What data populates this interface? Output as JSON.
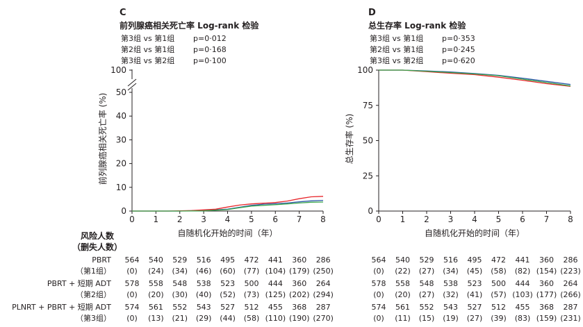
{
  "panels": [
    {
      "letter": "C",
      "title": "前列腺癌相关死亡率 Log-rank 检验",
      "pvalues": [
        {
          "label": "第3组 vs 第1组",
          "p": "p=0·012"
        },
        {
          "label": "第2组 vs 第1组",
          "p": "p=0·168"
        },
        {
          "label": "第3组 vs 第2组",
          "p": "p=0·100"
        }
      ]
    },
    {
      "letter": "D",
      "title": "总生存率 Log-rank 检验",
      "pvalues": [
        {
          "label": "第3组 vs 第1组",
          "p": "p=0·353"
        },
        {
          "label": "第2组 vs 第1组",
          "p": "p=0·245"
        },
        {
          "label": "第3组 vs 第2组",
          "p": "p=0·620"
        }
      ]
    }
  ],
  "colors": {
    "group1": "#2e5aa8",
    "group2": "#e8262b",
    "group3": "#3aa64c",
    "axis": "#231f20"
  },
  "risk_table": {
    "header": [
      "风险人数",
      "（删失人数）"
    ],
    "rows": [
      {
        "label": "PBRT",
        "sublabel": "（第1组）",
        "C": {
          "at_risk": [
            "564",
            "540",
            "529",
            "516",
            "495",
            "472",
            "441",
            "360",
            "286"
          ],
          "censored": [
            "(0)",
            "(24)",
            "(34)",
            "(46)",
            "(60)",
            "(77)",
            "(104)",
            "(179)",
            "(250)"
          ]
        },
        "D": {
          "at_risk": [
            "564",
            "540",
            "529",
            "516",
            "495",
            "472",
            "441",
            "360",
            "286"
          ],
          "censored": [
            "(0)",
            "(22)",
            "(27)",
            "(34)",
            "(45)",
            "(58)",
            "(82)",
            "(154)",
            "(223)"
          ]
        }
      },
      {
        "label": "PBRT + 短期 ADT",
        "sublabel": "（第2组）",
        "C": {
          "at_risk": [
            "578",
            "558",
            "548",
            "538",
            "523",
            "500",
            "444",
            "360",
            "264"
          ],
          "censored": [
            "(0)",
            "(20)",
            "(30)",
            "(40)",
            "(52)",
            "(73)",
            "(125)",
            "(202)",
            "(294)"
          ]
        },
        "D": {
          "at_risk": [
            "578",
            "558",
            "548",
            "538",
            "523",
            "500",
            "444",
            "360",
            "264"
          ],
          "censored": [
            "(0)",
            "(20)",
            "(27)",
            "(32)",
            "(41)",
            "(57)",
            "(103)",
            "(177)",
            "(266)"
          ]
        }
      },
      {
        "label": "PLNRT + PBRT + 短期 ADT",
        "sublabel": "（第3组）",
        "C": {
          "at_risk": [
            "574",
            "561",
            "552",
            "543",
            "527",
            "512",
            "455",
            "368",
            "287"
          ],
          "censored": [
            "(0)",
            "(13)",
            "(21)",
            "(29)",
            "(44)",
            "(58)",
            "(110)",
            "(190)",
            "(270)"
          ]
        },
        "D": {
          "at_risk": [
            "574",
            "561",
            "552",
            "543",
            "527",
            "512",
            "455",
            "368",
            "287"
          ],
          "censored": [
            "(0)",
            "(11)",
            "(15)",
            "(19)",
            "(27)",
            "(39)",
            "(83)",
            "(159)",
            "(231)"
          ]
        }
      }
    ]
  },
  "chart_data": [
    {
      "type": "line",
      "panel": "C",
      "title": "前列腺癌相关死亡率 Log-rank 检验",
      "xlabel": "自随机化开始的时间（年）",
      "ylabel": "前列腺癌相关死亡率 (%)",
      "xlim": [
        0,
        8
      ],
      "xticks": [
        "0",
        "1",
        "2",
        "3",
        "4",
        "5",
        "6",
        "7",
        "8"
      ],
      "yticks": [
        "0",
        "10",
        "20",
        "30",
        "40",
        "50",
        "100"
      ],
      "y_axis_break": [
        50,
        100
      ],
      "series": [
        {
          "color": "#2e5aa8",
          "points": [
            [
              0,
              0
            ],
            [
              2,
              0
            ],
            [
              2.6,
              0.2
            ],
            [
              3.5,
              0.5
            ],
            [
              4,
              0.8
            ],
            [
              4.5,
              1.6
            ],
            [
              5,
              2.4
            ],
            [
              5.5,
              2.9
            ],
            [
              6,
              3.1
            ],
            [
              6.5,
              3.4
            ],
            [
              7,
              3.9
            ],
            [
              7.5,
              4.3
            ],
            [
              8,
              4.5
            ]
          ]
        },
        {
          "color": "#e8262b",
          "points": [
            [
              0,
              0
            ],
            [
              1.5,
              0
            ],
            [
              2.5,
              0.2
            ],
            [
              3.5,
              0.8
            ],
            [
              4,
              1.7
            ],
            [
              4.5,
              2.5
            ],
            [
              5,
              3.0
            ],
            [
              5.5,
              3.3
            ],
            [
              6,
              3.6
            ],
            [
              6.5,
              4.2
            ],
            [
              7,
              5.2
            ],
            [
              7.5,
              6.0
            ],
            [
              8,
              6.2
            ]
          ]
        },
        {
          "color": "#3aa64c",
          "points": [
            [
              0,
              0
            ],
            [
              2,
              0
            ],
            [
              3,
              0.1
            ],
            [
              4,
              0.6
            ],
            [
              4.5,
              1.4
            ],
            [
              5,
              2.1
            ],
            [
              5.5,
              2.4
            ],
            [
              6,
              2.7
            ],
            [
              6.5,
              3.0
            ],
            [
              7,
              3.4
            ],
            [
              7.5,
              3.7
            ],
            [
              8,
              3.8
            ]
          ]
        }
      ]
    },
    {
      "type": "line",
      "panel": "D",
      "title": "总生存率 Log-rank 检验",
      "xlabel": "自随机化开始的时间（年）",
      "ylabel": "总生存率 (%)",
      "xlim": [
        0,
        8
      ],
      "ylim": [
        0,
        100
      ],
      "xticks": [
        "0",
        "1",
        "2",
        "3",
        "4",
        "5",
        "6",
        "7",
        "8"
      ],
      "yticks": [
        "0",
        "25",
        "50",
        "75",
        "100"
      ],
      "series": [
        {
          "color": "#2e5aa8",
          "points": [
            [
              0,
              100
            ],
            [
              1,
              100
            ],
            [
              2,
              99.4
            ],
            [
              3,
              98.7
            ],
            [
              4,
              97.6
            ],
            [
              5,
              96.3
            ],
            [
              6,
              94.3
            ],
            [
              7,
              92.0
            ],
            [
              8,
              89.8
            ]
          ]
        },
        {
          "color": "#e8262b",
          "points": [
            [
              0,
              100
            ],
            [
              1,
              100
            ],
            [
              2,
              98.9
            ],
            [
              3,
              97.8
            ],
            [
              4,
              96.8
            ],
            [
              5,
              95.0
            ],
            [
              6,
              92.8
            ],
            [
              7,
              90.4
            ],
            [
              8,
              88.5
            ]
          ]
        },
        {
          "color": "#3aa64c",
          "points": [
            [
              0,
              100
            ],
            [
              1,
              100
            ],
            [
              2,
              99.2
            ],
            [
              3,
              98.3
            ],
            [
              4,
              97.3
            ],
            [
              5,
              96.0
            ],
            [
              6,
              93.6
            ],
            [
              7,
              91.2
            ],
            [
              8,
              88.8
            ]
          ]
        }
      ]
    }
  ]
}
